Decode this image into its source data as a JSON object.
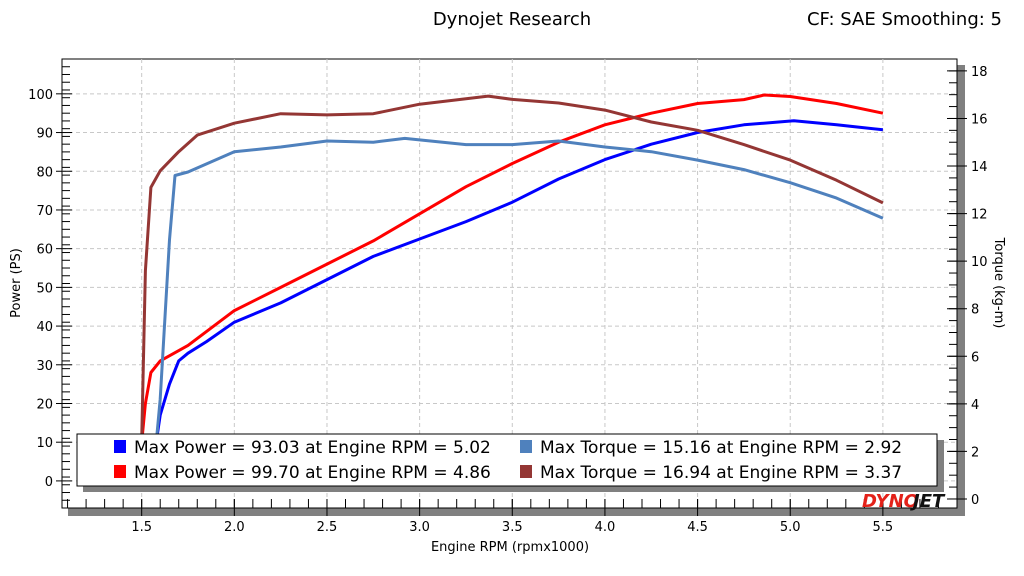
{
  "header": {
    "title": "Dynojet Research",
    "correction": "CF: SAE Smoothing: 5"
  },
  "logo_text": "DYNOJET",
  "chart_data": {
    "type": "line",
    "title": "Dynojet Research",
    "xlabel": "Engine RPM (rpmx1000)",
    "ylabel": "Power (PS)",
    "y2label": "Torque (kg-m)",
    "xlim": [
      1.07,
      5.9
    ],
    "ylim": [
      -7,
      109
    ],
    "y2lim": [
      -0.38,
      18.5
    ],
    "xticks": [
      1.5,
      2.0,
      2.5,
      3.0,
      3.5,
      4.0,
      4.5,
      5.0,
      5.5
    ],
    "xtick_labels": [
      "1.5",
      "2.0",
      "2.5",
      "3.0",
      "3.5",
      "4.0",
      "4.5",
      "5.0",
      "5.5"
    ],
    "yticks": [
      0,
      10,
      20,
      30,
      40,
      50,
      60,
      70,
      80,
      90,
      100
    ],
    "y2ticks": [
      0,
      2,
      4,
      6,
      8,
      10,
      12,
      14,
      16,
      18
    ],
    "grid": true,
    "legend_placement": "bottom",
    "series": [
      {
        "axis": "left",
        "color": "#0000ff",
        "x": [
          1.575,
          1.6,
          1.65,
          1.7,
          1.75,
          1.85,
          2.0,
          2.25,
          2.5,
          2.75,
          3.0,
          3.25,
          3.5,
          3.75,
          4.0,
          4.25,
          4.5,
          4.75,
          5.02,
          5.25,
          5.5
        ],
        "y": [
          9,
          17,
          25,
          31,
          33,
          36,
          41,
          46,
          52,
          58,
          62.5,
          67,
          72,
          78,
          83,
          87,
          90,
          92,
          93.03,
          92,
          90.7
        ]
      },
      {
        "axis": "left",
        "color": "#ff0000",
        "x": [
          1.5,
          1.52,
          1.55,
          1.6,
          1.75,
          2.0,
          2.25,
          2.5,
          2.75,
          3.0,
          3.25,
          3.5,
          3.75,
          4.0,
          4.25,
          4.5,
          4.75,
          4.86,
          5.0,
          5.25,
          5.5
        ],
        "y": [
          10,
          20,
          28,
          31,
          35,
          44,
          50,
          56,
          62,
          69,
          76,
          82,
          87.5,
          92,
          95,
          97.5,
          98.5,
          99.7,
          99.3,
          97.5,
          95
        ]
      },
      {
        "axis": "right",
        "color": "#4f81bd",
        "x": [
          1.58,
          1.6,
          1.65,
          1.68,
          1.75,
          2.0,
          2.25,
          2.5,
          2.75,
          2.92,
          3.25,
          3.5,
          3.75,
          4.0,
          4.25,
          4.5,
          4.75,
          5.0,
          5.25,
          5.5
        ],
        "y": [
          2.5,
          4.2,
          10.9,
          13.6,
          13.75,
          14.6,
          14.8,
          15.05,
          15.0,
          15.16,
          14.9,
          14.9,
          15.05,
          14.8,
          14.6,
          14.25,
          13.85,
          13.3,
          12.65,
          11.8
        ]
      },
      {
        "axis": "right",
        "color": "#943634",
        "x": [
          1.5,
          1.52,
          1.55,
          1.6,
          1.7,
          1.8,
          2.0,
          2.25,
          2.5,
          2.75,
          3.0,
          3.37,
          3.5,
          3.75,
          4.0,
          4.25,
          4.5,
          4.75,
          5.0,
          5.25,
          5.5
        ],
        "y": [
          2.5,
          9.6,
          13.1,
          13.8,
          14.6,
          15.3,
          15.8,
          16.2,
          16.15,
          16.2,
          16.6,
          16.94,
          16.8,
          16.65,
          16.35,
          15.85,
          15.5,
          14.9,
          14.25,
          13.4,
          12.45
        ]
      }
    ],
    "legend": [
      {
        "color": "#0000ff",
        "text": "Max Power = 93.03 at Engine RPM = 5.02"
      },
      {
        "color": "#4f81bd",
        "text": "Max Torque = 15.16 at Engine RPM = 2.92"
      },
      {
        "color": "#ff0000",
        "text": "Max Power = 99.70 at Engine RPM = 4.86"
      },
      {
        "color": "#943634",
        "text": "Max Torque = 16.94 at Engine RPM = 3.37"
      }
    ]
  }
}
